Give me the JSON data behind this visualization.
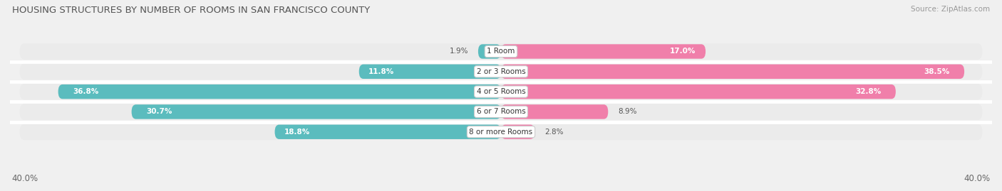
{
  "title": "HOUSING STRUCTURES BY NUMBER OF ROOMS IN SAN FRANCISCO COUNTY",
  "source": "Source: ZipAtlas.com",
  "categories": [
    "1 Room",
    "2 or 3 Rooms",
    "4 or 5 Rooms",
    "6 or 7 Rooms",
    "8 or more Rooms"
  ],
  "owner_values": [
    1.9,
    11.8,
    36.8,
    30.7,
    18.8
  ],
  "renter_values": [
    17.0,
    38.5,
    32.8,
    8.9,
    2.8
  ],
  "owner_color": "#5bbcbe",
  "renter_color": "#f07faa",
  "axis_max": 40.0,
  "axis_label_left": "40.0%",
  "axis_label_right": "40.0%",
  "bar_height": 0.72,
  "row_bg_color": "#ebebeb",
  "row_sep_color": "#ffffff",
  "title_fontsize": 9.5,
  "source_fontsize": 7.5,
  "tick_fontsize": 8.5,
  "label_fontsize": 7.5,
  "category_fontsize": 7.5,
  "background_color": "#f0f0f0"
}
